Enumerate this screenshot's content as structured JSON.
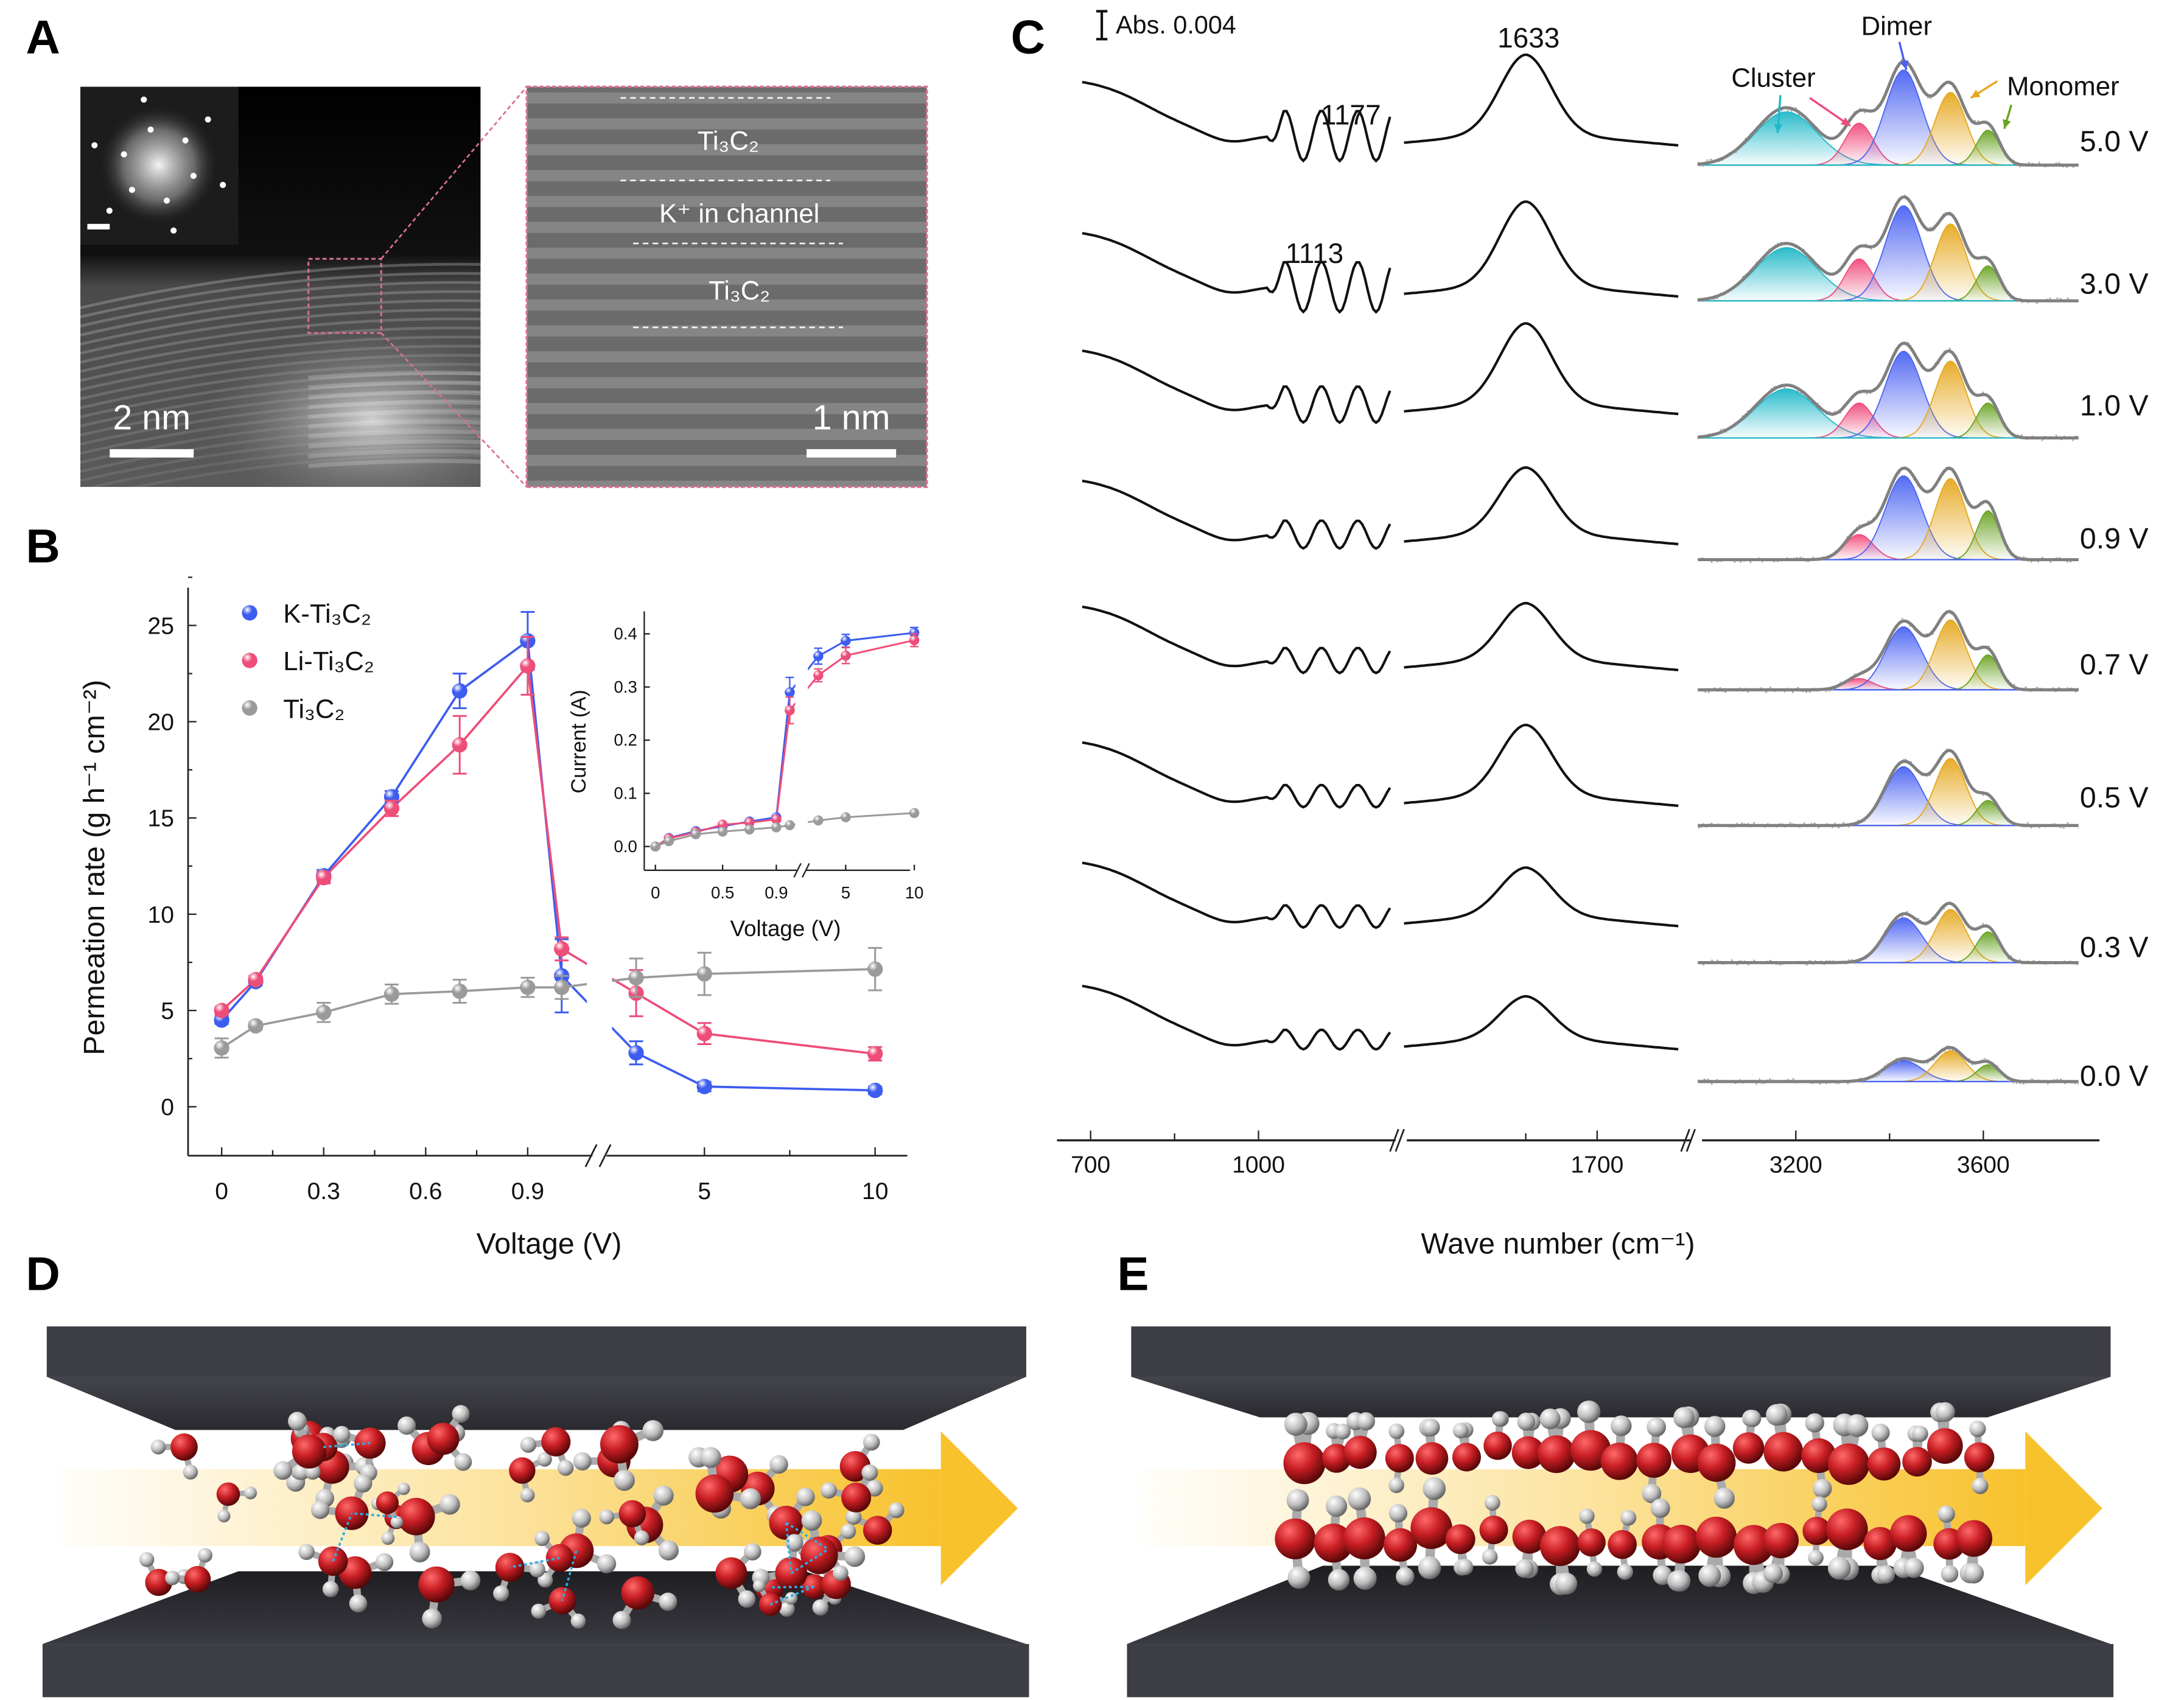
{
  "panels": {
    "a": "A",
    "b": "B",
    "c": "C",
    "d": "D",
    "e": "E"
  },
  "panel_a": {
    "scale_left": "2 nm",
    "scale_right": "1 nm",
    "layer_top": "Ti₃C₂",
    "channel": "K⁺ in channel",
    "layer_bottom": "Ti₃C₂"
  },
  "chart_data": [
    {
      "type": "line",
      "title": "",
      "xlabel": "Voltage (V)",
      "ylabel": "Permeation rate (g h⁻¹ cm⁻²)",
      "x": [
        0,
        0.1,
        0.3,
        0.5,
        0.7,
        0.9,
        1,
        3,
        5,
        10
      ],
      "xtick_values": [
        0,
        0.3,
        0.6,
        0.9,
        5,
        10
      ],
      "xticks": [
        "0",
        "0.3",
        "0.6",
        "0.9",
        "5",
        "10"
      ],
      "ytick_values": [
        0,
        5,
        10,
        15,
        20,
        25
      ],
      "yticks": [
        "0",
        "5",
        "10",
        "15",
        "20",
        "25"
      ],
      "ylim": [
        -2.5,
        27
      ],
      "x_axis_break": [
        1,
        3
      ],
      "legend": "top-left",
      "grid": false,
      "series": [
        {
          "name": "K-Ti₃C₂",
          "color": "#3d5cf0",
          "values": [
            4.5,
            6.5,
            12.0,
            16.1,
            21.6,
            24.2,
            6.8,
            2.8,
            1.05,
            0.85
          ],
          "errors": [
            0.2,
            0.2,
            0.3,
            0.3,
            0.9,
            1.5,
            1.9,
            0.6,
            0.25,
            0.2
          ]
        },
        {
          "name": "Li-Ti₃C₂",
          "color": "#ee4d78",
          "values": [
            5.0,
            6.6,
            11.9,
            15.5,
            18.8,
            22.9,
            8.2,
            5.9,
            3.8,
            2.75
          ],
          "errors": [
            0.2,
            0.2,
            0.3,
            0.4,
            1.5,
            1.5,
            0.6,
            1.2,
            0.55,
            0.35
          ]
        },
        {
          "name": "Ti₃C₂",
          "color": "#9a9a9a",
          "values": [
            3.05,
            4.2,
            4.9,
            5.85,
            6.0,
            6.2,
            6.2,
            6.7,
            6.9,
            7.15
          ],
          "errors": [
            0.5,
            0.2,
            0.5,
            0.5,
            0.6,
            0.5,
            0.6,
            1.0,
            1.1,
            1.1
          ]
        }
      ]
    },
    {
      "type": "line",
      "title": "",
      "xlabel": "Voltage  (V)",
      "ylabel": "Current (A)",
      "x": [
        0,
        0.1,
        0.3,
        0.5,
        0.7,
        0.9,
        1,
        3,
        5,
        10
      ],
      "xtick_values": [
        0,
        0.5,
        0.9,
        5,
        10
      ],
      "xticks": [
        "0",
        "0.5",
        "0.9",
        "5",
        "10"
      ],
      "ytick_values": [
        0,
        0.1,
        0.2,
        0.3,
        0.4
      ],
      "yticks": [
        "0.0",
        "0.1",
        "0.2",
        "0.3",
        "0.4"
      ],
      "ylim": [
        -0.05,
        0.45
      ],
      "x_axis_break": [
        1,
        3
      ],
      "series": [
        {
          "color": "#3d5cf0",
          "values": [
            0,
            0.016,
            0.029,
            0.038,
            0.047,
            0.055,
            0.29,
            0.358,
            0.387,
            0.402
          ],
          "errors": [
            0,
            0.003,
            0.003,
            0.003,
            0.003,
            0.004,
            0.028,
            0.015,
            0.012,
            0.01
          ]
        },
        {
          "color": "#ee4d78",
          "values": [
            0,
            0.015,
            0.027,
            0.041,
            0.045,
            0.051,
            0.256,
            0.322,
            0.359,
            0.388
          ],
          "errors": [
            0,
            0.003,
            0.003,
            0.003,
            0.003,
            0.004,
            0.025,
            0.012,
            0.015,
            0.012
          ]
        },
        {
          "color": "#9a9a9a",
          "values": [
            0,
            0.01,
            0.023,
            0.028,
            0.032,
            0.036,
            0.04,
            0.049,
            0.055,
            0.063
          ],
          "errors": [
            0,
            0,
            0,
            0,
            0,
            0,
            0,
            0,
            0,
            0
          ]
        }
      ]
    },
    {
      "type": "line",
      "title": "",
      "xlabel": "Wave number (cm⁻¹)",
      "xtick_values": [
        700,
        1000,
        1700,
        3200,
        3600
      ],
      "xticks": [
        "700",
        "1000",
        "1700",
        "3200",
        "3600"
      ],
      "scale_bar": "Abs. 0.004",
      "annotations": {
        "a1177": "1177",
        "a1113": "1113",
        "a1633": "1633"
      },
      "component_labels": {
        "cluster": "Cluster",
        "dimer": "Dimer",
        "monomer": "Monomer"
      },
      "voltages": [
        "5.0 V",
        "3.0 V",
        "1.0 V",
        "0.9 V",
        "0.7 V",
        "0.5 V",
        "0.3 V",
        "0.0 V"
      ],
      "peak_1633_abs": [
        0.011,
        0.0116,
        0.011,
        0.009,
        0.0076,
        0.0096,
        0.0064,
        0.0056
      ],
      "components": {
        "centers_cm1": [
          3180,
          3335,
          3430,
          3530,
          3610
        ],
        "widths_cm1": [
          66,
          30,
          39,
          33,
          24
        ],
        "colors": [
          "#1fb8c8",
          "#f04a7c",
          "#4b63f2",
          "#e6a81e",
          "#6aa324"
        ],
        "amplitudes_abs": [
          [
            0.0076,
            0.006,
            0.0136,
            0.0104,
            0.005
          ],
          [
            0.0076,
            0.006,
            0.0136,
            0.011,
            0.005
          ],
          [
            0.007,
            0.005,
            0.0124,
            0.011,
            0.005
          ],
          [
            0,
            0.0036,
            0.012,
            0.0116,
            0.007
          ],
          [
            0,
            0.0016,
            0.009,
            0.01,
            0.005
          ],
          [
            0,
            0,
            0.0084,
            0.0096,
            0.0036
          ],
          [
            0,
            0,
            0.0064,
            0.0076,
            0.0044
          ],
          [
            0,
            0,
            0.003,
            0.0044,
            0.0024
          ]
        ]
      }
    }
  ],
  "colors": {
    "slab": "#3c3c44",
    "arrow": "#f8c22c",
    "oxygen": "#c81e24",
    "hydrogen": "#d8d8d8",
    "hbond": "#29aee6"
  }
}
